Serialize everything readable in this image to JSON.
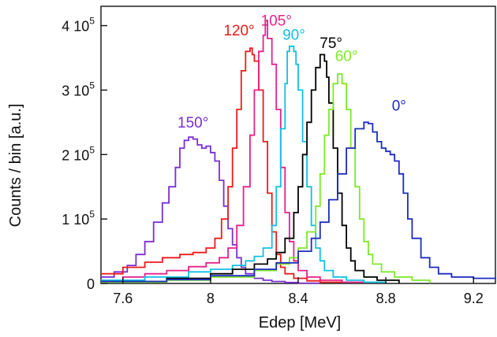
{
  "chart_data": {
    "type": "line",
    "xlabel": "Edep [MeV]",
    "ylabel": "Counts / bin [a.u.]",
    "xlim": [
      7.5,
      9.3
    ],
    "ylim": [
      0,
      430000
    ],
    "x_ticks": [
      {
        "value": 7.6,
        "label": "7.6"
      },
      {
        "value": 8.0,
        "label": "8"
      },
      {
        "value": 8.4,
        "label": "8.4"
      },
      {
        "value": 8.8,
        "label": "8.8"
      },
      {
        "value": 9.2,
        "label": "9.2"
      }
    ],
    "y_ticks": [
      {
        "value": 0,
        "mantissa": "0",
        "exp": ""
      },
      {
        "value": 100000,
        "mantissa": "1 10",
        "exp": "5"
      },
      {
        "value": 200000,
        "mantissa": "2 10",
        "exp": "5"
      },
      {
        "value": 300000,
        "mantissa": "3 10",
        "exp": "5"
      },
      {
        "value": 400000,
        "mantissa": "4 10",
        "exp": "5"
      }
    ],
    "grid": false,
    "legend": "inline labels",
    "series": [
      {
        "name": "150°",
        "color": "#7a2fd0",
        "label_at": [
          7.92,
          242000
        ],
        "x": [
          7.5,
          7.56,
          7.62,
          7.66,
          7.7,
          7.74,
          7.78,
          7.81,
          7.84,
          7.86,
          7.88,
          7.9,
          7.92,
          7.94,
          7.96,
          7.98,
          8.0,
          8.02,
          8.04,
          8.06,
          8.08,
          8.1,
          8.12,
          8.14,
          8.16,
          8.2,
          8.24,
          8.28,
          8.34,
          8.4,
          8.5
        ],
        "y": [
          10000,
          18000,
          28000,
          45000,
          65000,
          95000,
          125000,
          150000,
          180000,
          210000,
          222000,
          227000,
          224000,
          215000,
          210000,
          213000,
          203000,
          190000,
          160000,
          120000,
          85000,
          60000,
          40000,
          25000,
          15000,
          8000,
          5000,
          3000,
          1500,
          500,
          0
        ]
      },
      {
        "name": "120°",
        "color": "#f01a1a",
        "label_at": [
          8.13,
          385000
        ],
        "x": [
          7.5,
          7.6,
          7.7,
          7.78,
          7.86,
          7.92,
          7.98,
          8.02,
          8.05,
          8.08,
          8.1,
          8.12,
          8.14,
          8.16,
          8.18,
          8.19,
          8.2,
          8.22,
          8.24,
          8.26,
          8.28,
          8.3,
          8.32,
          8.34,
          8.38,
          8.44,
          8.5,
          8.6
        ],
        "y": [
          15000,
          25000,
          33000,
          40000,
          45000,
          48000,
          55000,
          70000,
          100000,
          150000,
          210000,
          270000,
          330000,
          360000,
          365000,
          355000,
          345000,
          300000,
          220000,
          140000,
          80000,
          45000,
          25000,
          15000,
          8000,
          4000,
          2000,
          500
        ]
      },
      {
        "name": "105°",
        "color": "#e8208a",
        "label_at": [
          8.3,
          400000
        ],
        "x": [
          7.5,
          7.6,
          7.7,
          7.8,
          7.9,
          7.98,
          8.04,
          8.08,
          8.12,
          8.15,
          8.18,
          8.2,
          8.22,
          8.24,
          8.25,
          8.26,
          8.28,
          8.3,
          8.32,
          8.34,
          8.36,
          8.38,
          8.4,
          8.44,
          8.5,
          8.6,
          8.7
        ],
        "y": [
          5000,
          10000,
          15000,
          20000,
          26000,
          32000,
          40000,
          55000,
          90000,
          150000,
          230000,
          300000,
          360000,
          385000,
          408000,
          380000,
          340000,
          270000,
          180000,
          110000,
          65000,
          35000,
          20000,
          10000,
          5000,
          2000,
          500
        ]
      },
      {
        "name": "90°",
        "color": "#12bfe6",
        "label_at": [
          8.38,
          378000
        ],
        "x": [
          7.5,
          7.7,
          7.9,
          8.0,
          8.1,
          8.16,
          8.2,
          8.24,
          8.28,
          8.3,
          8.32,
          8.34,
          8.35,
          8.36,
          8.38,
          8.39,
          8.4,
          8.42,
          8.44,
          8.46,
          8.48,
          8.5,
          8.52,
          8.56,
          8.62,
          8.7,
          8.8
        ],
        "y": [
          5000,
          10000,
          18000,
          22000,
          28000,
          35000,
          42000,
          55000,
          90000,
          150000,
          240000,
          310000,
          360000,
          368000,
          360000,
          340000,
          300000,
          220000,
          150000,
          90000,
          55000,
          35000,
          20000,
          10000,
          5000,
          2000,
          500
        ]
      },
      {
        "name": "75°",
        "color": "#000000",
        "label_at": [
          8.55,
          365000
        ],
        "x": [
          7.5,
          7.8,
          8.0,
          8.1,
          8.2,
          8.26,
          8.3,
          8.34,
          8.38,
          8.4,
          8.42,
          8.44,
          8.46,
          8.48,
          8.5,
          8.52,
          8.53,
          8.54,
          8.56,
          8.58,
          8.6,
          8.62,
          8.64,
          8.66,
          8.7,
          8.76,
          8.86
        ],
        "y": [
          3000,
          8000,
          15000,
          22000,
          30000,
          38000,
          48000,
          70000,
          110000,
          150000,
          200000,
          250000,
          300000,
          335000,
          355000,
          345000,
          320000,
          280000,
          210000,
          140000,
          90000,
          55000,
          35000,
          20000,
          10000,
          5000,
          500
        ]
      },
      {
        "name": "60°",
        "color": "#7ee82a",
        "label_at": [
          8.62,
          345000
        ],
        "x": [
          7.5,
          7.8,
          8.0,
          8.2,
          8.3,
          8.36,
          8.4,
          8.44,
          8.48,
          8.5,
          8.52,
          8.54,
          8.56,
          8.58,
          8.6,
          8.62,
          8.64,
          8.66,
          8.68,
          8.7,
          8.72,
          8.74,
          8.78,
          8.84,
          8.92,
          9.0
        ],
        "y": [
          2000,
          5000,
          10000,
          20000,
          30000,
          40000,
          55000,
          80000,
          120000,
          170000,
          230000,
          270000,
          310000,
          325000,
          310000,
          270000,
          210000,
          150000,
          100000,
          65000,
          45000,
          30000,
          18000,
          10000,
          5000,
          500
        ]
      },
      {
        "name": "0°",
        "color": "#1c2cc0",
        "label_at": [
          8.86,
          268000
        ],
        "x": [
          7.5,
          7.8,
          8.0,
          8.2,
          8.3,
          8.4,
          8.46,
          8.5,
          8.54,
          8.58,
          8.62,
          8.66,
          8.7,
          8.72,
          8.74,
          8.76,
          8.78,
          8.8,
          8.82,
          8.84,
          8.86,
          8.88,
          8.9,
          8.92,
          8.96,
          9.0,
          9.04,
          9.1,
          9.2,
          9.3
        ],
        "y": [
          3000,
          6000,
          12000,
          22000,
          32000,
          50000,
          70000,
          95000,
          130000,
          170000,
          210000,
          240000,
          250000,
          248000,
          235000,
          220000,
          210000,
          205000,
          200000,
          190000,
          170000,
          140000,
          100000,
          70000,
          40000,
          25000,
          15000,
          10000,
          8000,
          7000
        ]
      }
    ]
  }
}
